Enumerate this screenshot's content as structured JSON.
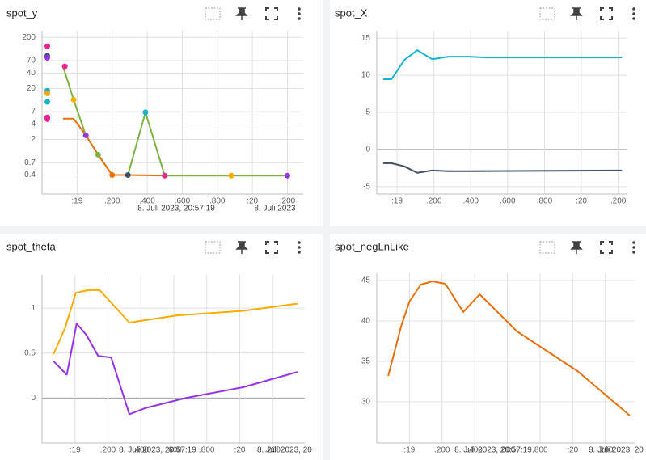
{
  "chart_data": [
    {
      "type": "line",
      "title": "spot_y",
      "log_y": true,
      "grid": true,
      "xlim": [
        18.8,
        20.29
      ],
      "ylim": [
        0.17,
        270
      ],
      "xticks": [
        {
          "value": 19,
          "label": ":19"
        },
        {
          "value": 19.2,
          "label": ".200"
        },
        {
          "value": 19.4,
          "label": ".400"
        },
        {
          "value": 19.6,
          "label": ".600"
        },
        {
          "value": 19.8,
          "label": ".800"
        },
        {
          "value": 20,
          "label": ":20"
        },
        {
          "value": 20.2,
          "label": ".200"
        }
      ],
      "yticks": [
        0.4,
        0.7,
        2,
        4,
        7,
        20,
        40,
        70,
        200
      ],
      "annotations": [
        "8. Juli 2023, 20:57:19",
        "8. Juli 2023"
      ],
      "series": [
        {
          "mode": "line",
          "color": "#7cb342",
          "x": [
            18.92,
            18.98,
            19.05,
            19.12,
            19.2,
            19.29,
            19.39,
            19.5,
            20.2
          ],
          "values": [
            54,
            12,
            2.4,
            1,
            0.4,
            0.4,
            6.8,
            0.39,
            0.39
          ]
        },
        {
          "mode": "line",
          "color": "#e8710a",
          "x": [
            18.92,
            18.98,
            19.05,
            19.12,
            19.2,
            19.29,
            19.5
          ],
          "values": [
            5.1,
            5.1,
            2.4,
            1,
            0.4,
            0.4,
            0.39
          ]
        },
        {
          "mode": "points",
          "color": "#e52592",
          "x": [
            18.83,
            18.83,
            18.83,
            18.93,
            19.5
          ],
          "values": [
            134,
            5.4,
            5.0,
            54,
            0.39
          ]
        },
        {
          "mode": "points",
          "color": "#425066",
          "x": [
            18.83,
            19.29
          ],
          "values": [
            87,
            0.4
          ]
        },
        {
          "mode": "points",
          "color": "#9334e6",
          "x": [
            18.83,
            19.05,
            20.2
          ],
          "values": [
            80,
            2.4,
            0.39
          ]
        },
        {
          "mode": "points",
          "color": "#12b5cb",
          "x": [
            18.83,
            18.83,
            19.39
          ],
          "values": [
            18,
            10.9,
            6.8
          ]
        },
        {
          "mode": "points",
          "color": "#f9ab00",
          "x": [
            18.83,
            18.98,
            19.88
          ],
          "values": [
            16,
            12,
            0.39
          ]
        },
        {
          "mode": "points",
          "color": "#7cb342",
          "x": [
            19.12
          ],
          "values": [
            1.0
          ]
        },
        {
          "mode": "points",
          "color": "#e8710a",
          "x": [
            19.2
          ],
          "values": [
            0.4
          ]
        }
      ]
    },
    {
      "type": "line",
      "title": "spot_X",
      "log_y": false,
      "grid": true,
      "xlim": [
        18.89,
        20.25
      ],
      "ylim": [
        -6,
        16
      ],
      "xticks": [
        {
          "value": 19,
          "label": ":19"
        },
        {
          "value": 19.2,
          "label": ".200"
        },
        {
          "value": 19.4,
          "label": ".400"
        },
        {
          "value": 19.6,
          "label": ".600"
        },
        {
          "value": 19.8,
          "label": ".800"
        },
        {
          "value": 20,
          "label": ":20"
        },
        {
          "value": 20.2,
          "label": ".200"
        }
      ],
      "yticks": [
        -5,
        0,
        5,
        10,
        15
      ],
      "annotations": [],
      "series": [
        {
          "mode": "line",
          "color": "#12b5cb",
          "x": [
            18.925,
            18.97,
            19.04,
            19.11,
            19.19,
            19.28,
            19.39,
            19.48,
            19.61,
            20.22
          ],
          "values": [
            9.46,
            9.46,
            12.07,
            13.37,
            12.17,
            12.5,
            12.5,
            12.4,
            12.4,
            12.4
          ]
        },
        {
          "mode": "line",
          "color": "#425066",
          "x": [
            18.925,
            18.97,
            19.04,
            19.11,
            19.19,
            19.28,
            19.39,
            20.22
          ],
          "values": [
            -1.85,
            -1.85,
            -2.28,
            -3.15,
            -2.83,
            -2.93,
            -2.93,
            -2.83
          ]
        }
      ]
    },
    {
      "type": "line",
      "title": "spot_theta",
      "log_y": false,
      "grid": true,
      "xlim": [
        18.8,
        20.395
      ],
      "ylim": [
        -0.5,
        1.37
      ],
      "xticks": [
        {
          "value": 19,
          "label": ":19"
        },
        {
          "value": 19.2,
          "label": ".200"
        },
        {
          "value": 19.4,
          "label": ".400"
        },
        {
          "value": 19.6,
          "label": ".600"
        },
        {
          "value": 19.8,
          "label": ".800"
        },
        {
          "value": 20,
          "label": ":20"
        },
        {
          "value": 20.2,
          "label": ".200"
        }
      ],
      "yticks": [
        0,
        0.5,
        1
      ],
      "annotations": [
        "8. Juli 2023, 20:57:19",
        "8. Juli 2023, 20"
      ],
      "series": [
        {
          "mode": "line",
          "color": "#f9ab00",
          "x": [
            18.87,
            18.94,
            19.005,
            19.08,
            19.15,
            19.33,
            19.62,
            20.02,
            20.35
          ],
          "values": [
            0.49,
            0.78,
            1.17,
            1.2,
            1.2,
            0.84,
            0.92,
            0.97,
            1.05
          ]
        },
        {
          "mode": "line",
          "color": "#9334e6",
          "x": [
            18.87,
            18.95,
            19.01,
            19.07,
            19.14,
            19.22,
            19.33,
            19.43,
            19.67,
            20.02,
            20.35
          ],
          "values": [
            0.41,
            0.26,
            0.83,
            0.7,
            0.47,
            0.45,
            -0.18,
            -0.11,
            0,
            0.12,
            0.29
          ]
        }
      ]
    },
    {
      "type": "line",
      "title": "spot_negLnLike",
      "log_y": false,
      "grid": true,
      "xlim": [
        18.8,
        20.38
      ],
      "ylim": [
        24.9,
        45.9
      ],
      "xticks": [
        {
          "value": 19,
          "label": ":19"
        },
        {
          "value": 19.2,
          "label": ".200"
        },
        {
          "value": 19.4,
          "label": ".400"
        },
        {
          "value": 19.6,
          "label": ".600"
        },
        {
          "value": 19.8,
          "label": ".800"
        },
        {
          "value": 20,
          "label": ":20"
        },
        {
          "value": 20.2,
          "label": ".200"
        }
      ],
      "yticks": [
        30,
        35,
        40,
        45
      ],
      "annotations": [
        "8. Juli 2023, 20:57:19",
        "8. Juli 2023, 20"
      ],
      "series": [
        {
          "mode": "line",
          "color": "#e8710a",
          "x": [
            18.87,
            18.95,
            19.0,
            19.07,
            19.14,
            19.22,
            19.33,
            19.43,
            19.66,
            20.03,
            20.35
          ],
          "values": [
            33.2,
            39.4,
            42.4,
            44.5,
            44.9,
            44.6,
            41.1,
            43.3,
            38.7,
            33.8,
            28.3
          ]
        }
      ]
    }
  ]
}
